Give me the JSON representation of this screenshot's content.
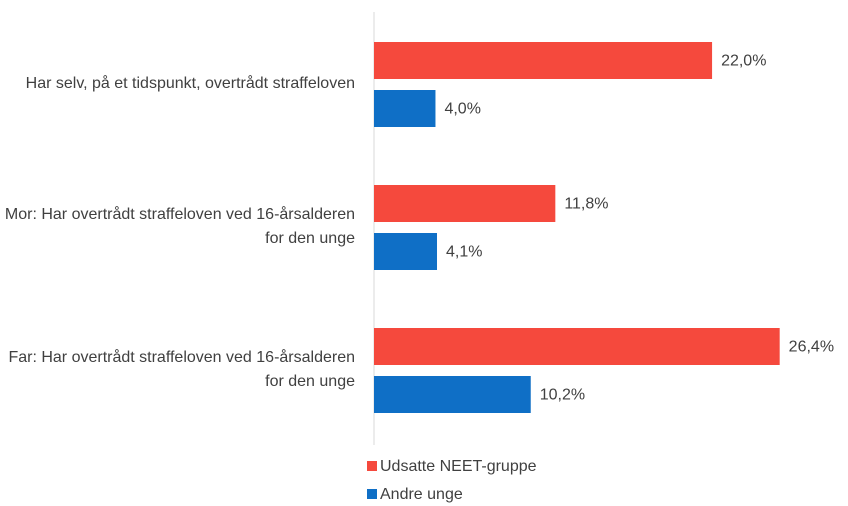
{
  "chart_data": {
    "type": "hbar",
    "categories": [
      "Har selv, på et tidspunkt, overtrådt straffeloven",
      "Mor: Har overtrådt straffeloven ved 16-årsalderen for den unge",
      "Far: Har overtrådt straffeloven ved 16-årsalderen for den unge"
    ],
    "series": [
      {
        "name": "Udsatte NEET-gruppe",
        "color": "#f5493d",
        "values": [
          22.0,
          11.8,
          26.4
        ],
        "value_labels": [
          "22,0%",
          "11,8%",
          "26,4%"
        ]
      },
      {
        "name": "Andre unge",
        "color": "#0f6fc6",
        "values": [
          4.0,
          4.1,
          10.2
        ],
        "value_labels": [
          "4,0%",
          "4,1%",
          "10,2%"
        ]
      }
    ],
    "xlim": [
      0,
      30
    ],
    "legend": "bottom"
  }
}
